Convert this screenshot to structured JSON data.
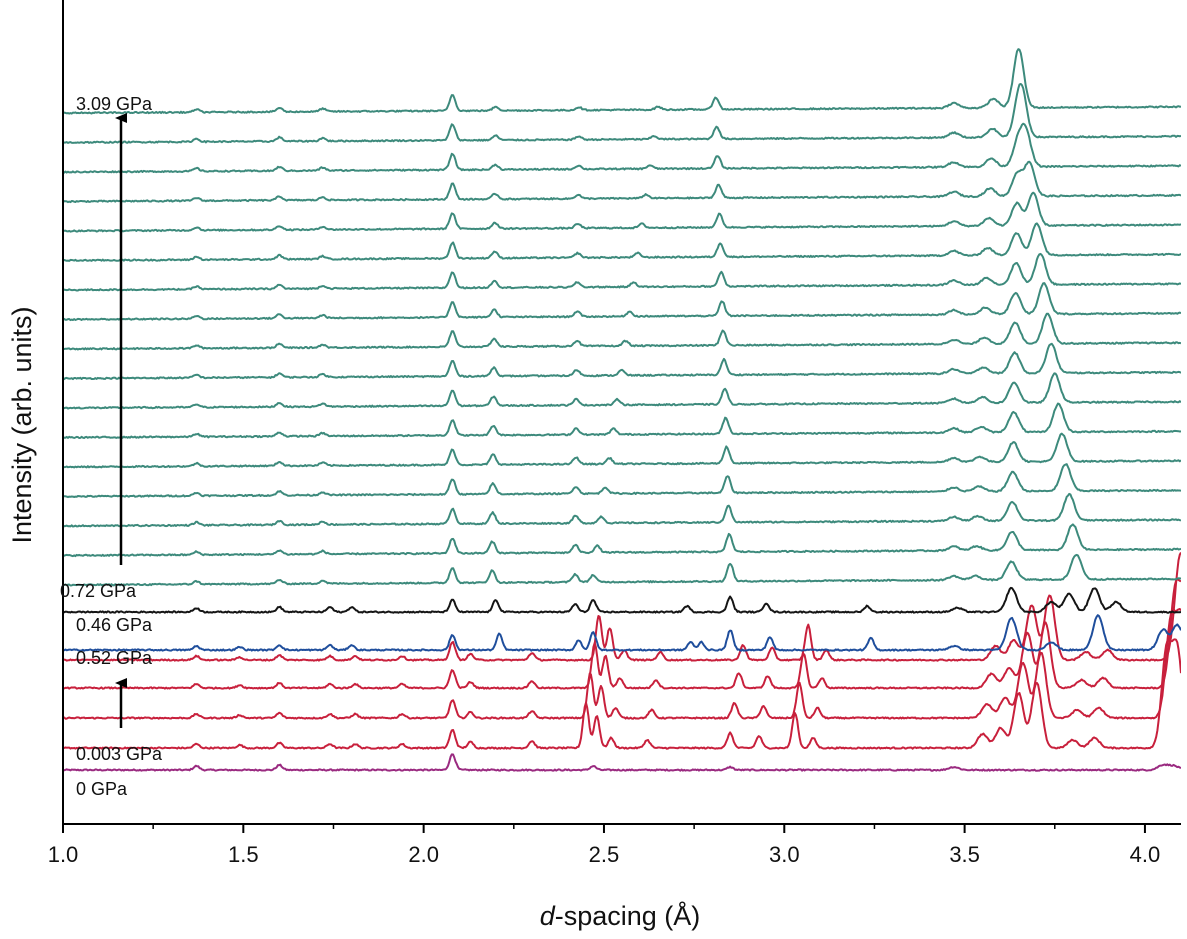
{
  "chart_data": {
    "type": "line",
    "title": "",
    "xlabel_italic": "d",
    "xlabel_rest": "-spacing (Å)",
    "ylabel": "Intensity (arb. units)",
    "xlim": [
      1.0,
      4.1
    ],
    "x_ticks": [
      "1.0",
      "1.5",
      "2.0",
      "2.5",
      "3.0",
      "3.5",
      "4.0"
    ],
    "x_tick_values": [
      1.0,
      1.5,
      2.0,
      2.5,
      3.0,
      3.5,
      4.0
    ],
    "y_ticks_shown": false,
    "grid": false,
    "colors": {
      "teal": "#3d8a7c",
      "black": "#151515",
      "blue": "#1f4e9c",
      "red": "#c8203c",
      "purple": "#9a2a80"
    },
    "pressure_labels": [
      {
        "text": "3.09 GPa",
        "color": "teal"
      },
      {
        "text": "0.72 GPa",
        "color": "black"
      },
      {
        "text": "0.46 GPa",
        "color": "blue"
      },
      {
        "text": "0.52 GPa",
        "color": "red"
      },
      {
        "text": "0.003 GPa",
        "color": "red"
      },
      {
        "text": "0 GPa",
        "color": "purple"
      }
    ],
    "arrows": [
      "increasing pressure (teal group)",
      "increasing pressure (red group)"
    ],
    "series": [
      {
        "group": "0 GPa",
        "color": "purple",
        "count": 1,
        "peaks": [
          [
            1.37,
            0.4
          ],
          [
            1.6,
            0.5
          ],
          [
            2.08,
            1.6
          ],
          [
            2.47,
            0.4
          ],
          [
            2.85,
            0.3
          ],
          [
            3.47,
            0.3
          ],
          [
            4.05,
            0.5
          ],
          [
            4.08,
            0.4
          ]
        ]
      },
      {
        "group": "0.003–0.52 GPa",
        "color": "red",
        "count": 4,
        "peaks": [
          [
            1.37,
            0.4
          ],
          [
            1.49,
            0.3
          ],
          [
            1.6,
            0.5
          ],
          [
            1.74,
            0.4
          ],
          [
            1.81,
            0.4
          ],
          [
            1.94,
            0.4
          ],
          [
            2.08,
            1.8
          ],
          [
            2.13,
            0.6
          ],
          [
            2.3,
            0.7
          ],
          [
            2.45,
            4.5
          ],
          [
            2.48,
            3.2
          ],
          [
            2.52,
            1.0
          ],
          [
            2.62,
            0.8
          ],
          [
            2.85,
            1.5
          ],
          [
            2.93,
            1.2
          ],
          [
            3.03,
            3.5
          ],
          [
            3.08,
            1.0
          ],
          [
            3.55,
            1.4
          ],
          [
            3.6,
            2.0
          ],
          [
            3.65,
            5.5
          ],
          [
            3.7,
            6.5
          ],
          [
            3.8,
            0.8
          ],
          [
            3.86,
            1.0
          ],
          [
            4.06,
            9.5
          ],
          [
            4.09,
            9.5
          ]
        ]
      },
      {
        "group": "0.46 GPa",
        "color": "blue",
        "count": 1,
        "peaks": [
          [
            1.37,
            0.4
          ],
          [
            1.49,
            0.3
          ],
          [
            1.6,
            0.5
          ],
          [
            1.74,
            0.5
          ],
          [
            1.8,
            0.5
          ],
          [
            2.08,
            1.5
          ],
          [
            2.21,
            1.6
          ],
          [
            2.43,
            1.0
          ],
          [
            2.47,
            1.8
          ],
          [
            2.74,
            0.8
          ],
          [
            2.77,
            0.8
          ],
          [
            2.85,
            2.0
          ],
          [
            2.96,
            1.3
          ],
          [
            3.24,
            1.2
          ],
          [
            3.47,
            0.4
          ],
          [
            3.63,
            3.2
          ],
          [
            3.74,
            0.8
          ],
          [
            3.87,
            3.5
          ],
          [
            4.05,
            2.0
          ],
          [
            4.09,
            2.5
          ]
        ]
      },
      {
        "group": "0.72 GPa",
        "color": "black",
        "count": 1,
        "peaks": [
          [
            1.37,
            0.4
          ],
          [
            1.6,
            0.5
          ],
          [
            1.74,
            0.5
          ],
          [
            1.8,
            0.5
          ],
          [
            2.08,
            1.2
          ],
          [
            2.2,
            1.2
          ],
          [
            2.42,
            0.8
          ],
          [
            2.47,
            1.2
          ],
          [
            2.73,
            0.6
          ],
          [
            2.85,
            1.5
          ],
          [
            2.95,
            0.9
          ],
          [
            3.23,
            0.6
          ],
          [
            3.48,
            0.4
          ],
          [
            3.63,
            2.4
          ],
          [
            3.74,
            1.0
          ],
          [
            3.79,
            1.8
          ],
          [
            3.86,
            2.4
          ],
          [
            3.92,
            1.0
          ]
        ]
      },
      {
        "group": "0.72–3.09 GPa",
        "color": "teal",
        "count": 17,
        "peaks_first": [
          [
            1.37,
            0.3
          ],
          [
            1.6,
            0.4
          ],
          [
            1.72,
            0.3
          ],
          [
            2.08,
            1.5
          ],
          [
            2.19,
            1.2
          ],
          [
            2.42,
            0.8
          ],
          [
            2.47,
            0.7
          ],
          [
            2.85,
            1.8
          ],
          [
            3.47,
            0.4
          ],
          [
            3.53,
            0.4
          ],
          [
            3.63,
            1.8
          ],
          [
            3.81,
            2.5
          ]
        ],
        "peaks_last": [
          [
            1.37,
            0.3
          ],
          [
            1.6,
            0.4
          ],
          [
            1.72,
            0.3
          ],
          [
            2.08,
            1.6
          ],
          [
            2.2,
            0.4
          ],
          [
            2.43,
            0.3
          ],
          [
            2.65,
            0.3
          ],
          [
            2.81,
            1.2
          ],
          [
            3.47,
            0.5
          ],
          [
            3.58,
            0.9
          ],
          [
            3.65,
            2.4
          ]
        ]
      }
    ]
  }
}
